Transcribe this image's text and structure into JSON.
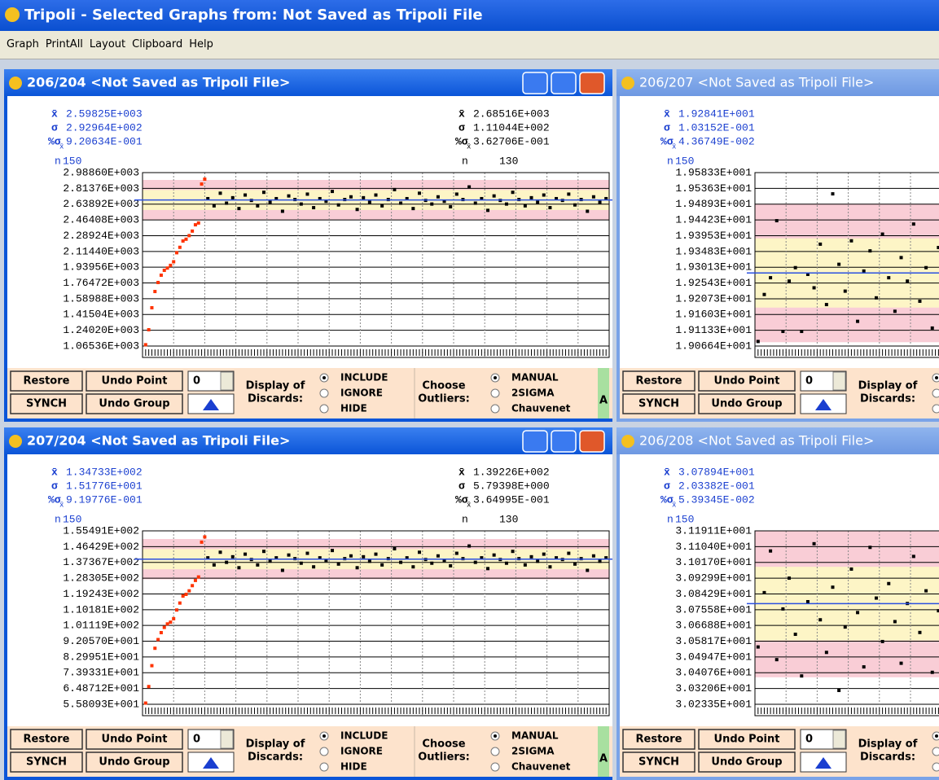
{
  "window": {
    "title": "Tripoli - Selected Graphs from: Not Saved as Tripoli File",
    "menu": [
      "Graph",
      "PrintAll",
      "Layout",
      "Clipboard",
      "Help"
    ],
    "stat_labels": {
      "mean": "x̄",
      "sigma": "σ",
      "pct": "%σ",
      "pct_sub": "x̄",
      "n": "n"
    }
  },
  "toolbar": {
    "restore": "Restore",
    "undo_point": "Undo Point",
    "synch": "SYNCH",
    "undo_group": "Undo Group",
    "spinner": "0",
    "display": [
      "Display of",
      "Discards:"
    ],
    "discards": [
      "INCLUDE",
      "IGNORE",
      "HIDE"
    ],
    "selected_discard": 0,
    "choose": [
      "Choose",
      "Outliers:"
    ],
    "outliers": [
      "MANUAL",
      "2SIGMA",
      "Chauvenet"
    ],
    "selected_outlier": 0,
    "cut": "A"
  },
  "style": {
    "point": "#000000",
    "discard": "#ff3300",
    "sigma1": "#fdf5c6",
    "sigma2": "#f9cdd6",
    "mean": "#2a50e0",
    "stats": "#1a3fd0"
  },
  "chart_data": [
    {
      "type": "scatter",
      "title": "206/204 <Not Saved as Tripoli File>",
      "stats": [
        {
          "mean": "2.59825E+003",
          "sigma": "2.92964E+002",
          "pct": "9.20634E-001",
          "n": "150"
        },
        {
          "mean": "2.68516E+003",
          "sigma": "1.11044E+002",
          "pct": "3.62706E-001",
          "n": "130"
        }
      ],
      "xlim": [
        0,
        150
      ],
      "xticks": [
        0,
        10,
        20,
        30,
        40,
        50,
        60,
        70,
        80,
        90,
        100,
        110,
        120,
        130,
        140,
        150
      ],
      "ylim": [
        1065.36,
        2988.6
      ],
      "yticks": [
        {
          "value": 2988.6,
          "label": "2.98860E+003"
        },
        {
          "value": 2813.76,
          "label": "2.81376E+003"
        },
        {
          "value": 2638.92,
          "label": "2.63892E+003"
        },
        {
          "value": 2464.08,
          "label": "2.46408E+003"
        },
        {
          "value": 2289.24,
          "label": "2.28924E+003"
        },
        {
          "value": 2114.4,
          "label": "2.11440E+003"
        },
        {
          "value": 1939.56,
          "label": "1.93956E+003"
        },
        {
          "value": 1764.72,
          "label": "1.76472E+003"
        },
        {
          "value": 1589.88,
          "label": "1.58988E+003"
        },
        {
          "value": 1415.04,
          "label": "1.41504E+003"
        },
        {
          "value": 1240.2,
          "label": "1.24020E+003"
        },
        {
          "value": 1065.36,
          "label": "1.06536E+003"
        }
      ],
      "x": [
        1,
        2,
        3,
        4,
        5,
        6,
        7,
        8,
        9,
        10,
        11,
        12,
        13,
        14,
        15,
        16,
        17,
        18,
        19,
        20,
        21,
        23,
        25,
        27,
        29,
        31,
        33,
        35,
        37,
        39,
        41,
        43,
        45,
        47,
        49,
        51,
        53,
        55,
        57,
        59,
        61,
        63,
        65,
        67,
        69,
        71,
        73,
        75,
        77,
        79,
        81,
        83,
        85,
        87,
        89,
        91,
        93,
        95,
        97,
        99,
        101,
        103,
        105,
        107,
        109,
        111,
        113,
        115,
        117,
        119,
        121,
        123,
        125,
        127,
        129,
        131,
        133,
        135,
        137,
        139,
        141,
        143,
        145,
        147,
        149
      ],
      "values": [
        1080,
        1246,
        1490,
        1670,
        1770,
        1851,
        1905,
        1930,
        1960,
        2000,
        2100,
        2160,
        2230,
        2250,
        2290,
        2340,
        2410,
        2430,
        2862,
        2916,
        2700,
        2620,
        2760,
        2650,
        2710,
        2590,
        2740,
        2680,
        2620,
        2770,
        2660,
        2700,
        2560,
        2730,
        2690,
        2640,
        2750,
        2600,
        2700,
        2670,
        2780,
        2630,
        2690,
        2720,
        2580,
        2710,
        2660,
        2740,
        2620,
        2690,
        2800,
        2650,
        2700,
        2590,
        2760,
        2680,
        2640,
        2720,
        2670,
        2610,
        2750,
        2690,
        2830,
        2650,
        2700,
        2570,
        2730,
        2680,
        2640,
        2770,
        2690,
        2620,
        2710,
        2660,
        2740,
        2600,
        2700,
        2680,
        2750,
        2630,
        2690,
        2560,
        2720,
        2660,
        2700
      ]
    },
    {
      "type": "scatter",
      "title": "206/207 <Not Saved as Tripoli File>",
      "stats": [
        {
          "mean": "1.92841E+001",
          "sigma": "1.03152E-001",
          "pct": "4.36749E-002",
          "n": "150"
        }
      ],
      "xlim": [
        0,
        150
      ],
      "xticks": [
        0,
        10,
        20,
        30,
        40,
        50,
        60,
        70,
        80,
        90,
        100,
        110,
        120,
        130,
        140,
        150
      ],
      "ylim": [
        19.0664,
        19.5833
      ],
      "yticks": [
        {
          "value": 19.5833,
          "label": "1.95833E+001"
        },
        {
          "value": 19.5363,
          "label": "1.95363E+001"
        },
        {
          "value": 19.4893,
          "label": "1.94893E+001"
        },
        {
          "value": 19.4423,
          "label": "1.94423E+001"
        },
        {
          "value": 19.3953,
          "label": "1.93953E+001"
        },
        {
          "value": 19.3483,
          "label": "1.93483E+001"
        },
        {
          "value": 19.3013,
          "label": "1.93013E+001"
        },
        {
          "value": 19.2543,
          "label": "1.92543E+001"
        },
        {
          "value": 19.2073,
          "label": "1.92073E+001"
        },
        {
          "value": 19.1603,
          "label": "1.91603E+001"
        },
        {
          "value": 19.1133,
          "label": "1.91133E+001"
        },
        {
          "value": 19.0664,
          "label": "1.90664E+001"
        }
      ],
      "x": [
        1,
        3,
        5,
        7,
        9,
        11,
        13,
        15,
        17,
        19,
        21,
        23,
        25,
        27,
        29,
        31,
        33,
        35,
        37,
        39,
        41,
        43,
        45,
        47,
        49,
        51,
        53,
        55,
        57,
        59
      ],
      "values": [
        19.08,
        19.22,
        19.27,
        19.44,
        19.11,
        19.26,
        19.3,
        19.11,
        19.28,
        19.24,
        19.37,
        19.19,
        19.52,
        19.31,
        19.23,
        19.38,
        19.14,
        19.29,
        19.35,
        19.21,
        19.4,
        19.27,
        19.17,
        19.33,
        19.26,
        19.43,
        19.2,
        19.3,
        19.12,
        19.36
      ]
    },
    {
      "type": "scatter",
      "title": "207/204 <Not Saved as Tripoli File>",
      "stats": [
        {
          "mean": "1.34733E+002",
          "sigma": "1.51776E+001",
          "pct": "9.19776E-001",
          "n": "150"
        },
        {
          "mean": "1.39226E+002",
          "sigma": "5.79398E+000",
          "pct": "3.64995E-001",
          "n": "130"
        }
      ],
      "xlim": [
        0,
        150
      ],
      "xticks": [
        0,
        10,
        20,
        30,
        40,
        50,
        60,
        70,
        80,
        90,
        100,
        110,
        120,
        130,
        140,
        150
      ],
      "ylim": [
        55.8093,
        155.491
      ],
      "yticks": [
        {
          "value": 155.491,
          "label": "1.55491E+002"
        },
        {
          "value": 146.429,
          "label": "1.46429E+002"
        },
        {
          "value": 137.367,
          "label": "1.37367E+002"
        },
        {
          "value": 128.305,
          "label": "1.28305E+002"
        },
        {
          "value": 119.243,
          "label": "1.19243E+002"
        },
        {
          "value": 110.181,
          "label": "1.10181E+002"
        },
        {
          "value": 101.119,
          "label": "1.01119E+002"
        },
        {
          "value": 92.057,
          "label": "9.20570E+001"
        },
        {
          "value": 82.9951,
          "label": "8.29951E+001"
        },
        {
          "value": 73.9331,
          "label": "7.39331E+001"
        },
        {
          "value": 64.8712,
          "label": "6.48712E+001"
        },
        {
          "value": 55.8093,
          "label": "5.58093E+001"
        }
      ],
      "x": [
        1,
        2,
        3,
        4,
        5,
        6,
        7,
        8,
        9,
        10,
        11,
        12,
        13,
        14,
        15,
        16,
        17,
        18,
        19,
        20,
        21,
        23,
        25,
        27,
        29,
        31,
        33,
        35,
        37,
        39,
        41,
        43,
        45,
        47,
        49,
        51,
        53,
        55,
        57,
        59,
        61,
        63,
        65,
        67,
        69,
        71,
        73,
        75,
        77,
        79,
        81,
        83,
        85,
        87,
        89,
        91,
        93,
        95,
        97,
        99,
        101,
        103,
        105,
        107,
        109,
        111,
        113,
        115,
        117,
        119,
        121,
        123,
        125,
        127,
        129,
        131,
        133,
        135,
        137,
        139,
        141,
        143,
        145,
        147,
        149
      ],
      "values": [
        56.5,
        66,
        78,
        88,
        93,
        97,
        100,
        102,
        103,
        105,
        110,
        114,
        118,
        119,
        121,
        124,
        127,
        129,
        149,
        152,
        140.0,
        135.9,
        143.2,
        137.4,
        140.6,
        134.3,
        142.1,
        139.0,
        135.9,
        143.7,
        138.1,
        140.0,
        132.8,
        141.6,
        139.5,
        136.9,
        142.6,
        134.8,
        140.0,
        138.5,
        144.2,
        136.4,
        139.5,
        141.1,
        134.3,
        140.6,
        138.0,
        142.1,
        135.9,
        139.5,
        145.2,
        137.4,
        140.0,
        134.8,
        143.2,
        139.0,
        136.9,
        141.1,
        138.5,
        135.4,
        142.6,
        139.5,
        146.8,
        137.4,
        140.0,
        133.8,
        141.6,
        139.0,
        136.9,
        143.7,
        139.5,
        135.9,
        140.6,
        138.0,
        142.1,
        134.8,
        140.0,
        139.0,
        142.6,
        136.4,
        139.5,
        132.8,
        141.1,
        138.0,
        140.0
      ]
    },
    {
      "type": "scatter",
      "title": "206/208 <Not Saved as Tripoli File>",
      "stats": [
        {
          "mean": "3.07894E+001",
          "sigma": "2.03382E-001",
          "pct": "5.39345E-002",
          "n": "150"
        }
      ],
      "xlim": [
        0,
        150
      ],
      "xticks": [
        0,
        10,
        20,
        30,
        40,
        50,
        60,
        70,
        80,
        90,
        100,
        110,
        120,
        130,
        140,
        150
      ],
      "ylim": [
        30.2335,
        31.1911
      ],
      "yticks": [
        {
          "value": 31.1911,
          "label": "3.11911E+001"
        },
        {
          "value": 31.104,
          "label": "3.11040E+001"
        },
        {
          "value": 31.017,
          "label": "3.10170E+001"
        },
        {
          "value": 30.9299,
          "label": "3.09299E+001"
        },
        {
          "value": 30.8429,
          "label": "3.08429E+001"
        },
        {
          "value": 30.7558,
          "label": "3.07558E+001"
        },
        {
          "value": 30.6688,
          "label": "3.06688E+001"
        },
        {
          "value": 30.5817,
          "label": "3.05817E+001"
        },
        {
          "value": 30.4947,
          "label": "3.04947E+001"
        },
        {
          "value": 30.4076,
          "label": "3.04076E+001"
        },
        {
          "value": 30.3206,
          "label": "3.03206E+001"
        },
        {
          "value": 30.2335,
          "label": "3.02335E+001"
        }
      ],
      "x": [
        1,
        3,
        5,
        7,
        9,
        11,
        13,
        15,
        17,
        19,
        21,
        23,
        25,
        27,
        29,
        31,
        33,
        35,
        37,
        39,
        41,
        43,
        45,
        47,
        49,
        51,
        53,
        55,
        57,
        59
      ],
      "values": [
        30.55,
        30.85,
        31.08,
        30.48,
        30.76,
        30.93,
        30.62,
        30.39,
        30.8,
        31.12,
        30.7,
        30.52,
        30.88,
        30.31,
        30.66,
        30.98,
        30.74,
        30.44,
        31.1,
        30.82,
        30.58,
        30.9,
        30.69,
        30.46,
        30.79,
        31.05,
        30.63,
        30.86,
        30.41,
        30.75
      ]
    }
  ]
}
